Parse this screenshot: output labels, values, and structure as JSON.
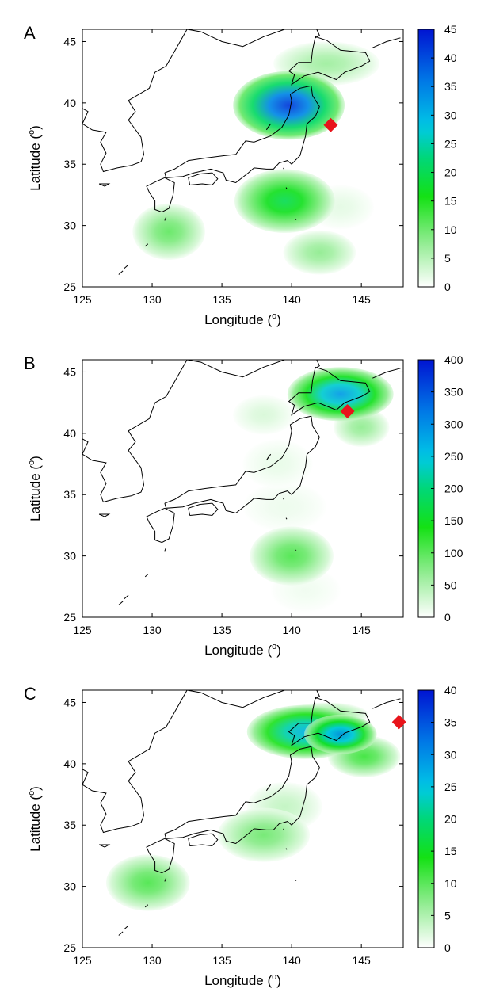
{
  "chart_data": [
    {
      "panel": "A",
      "type": "heatmap",
      "xlabel": "Longitude (",
      "ylabel": "Latitude (",
      "unit_sup": "o",
      "xlim": [
        125,
        148
      ],
      "ylim": [
        25,
        46
      ],
      "x_ticks": [
        "125",
        "130",
        "135",
        "140",
        "145"
      ],
      "y_ticks": [
        "25",
        "30",
        "35",
        "40",
        "45"
      ],
      "colorbar": {
        "min": 0,
        "max": 45,
        "ticks": [
          "0",
          "5",
          "10",
          "15",
          "20",
          "25",
          "30",
          "35",
          "40",
          "45"
        ]
      },
      "marker": {
        "shape": "diamond",
        "color": "#e8141b",
        "lon": 142.8,
        "lat": 38.2
      },
      "blobs": [
        {
          "lon": 139.8,
          "lat": 39.8,
          "rlon": 4.0,
          "rlat": 2.8,
          "value": 42
        },
        {
          "lon": 139.5,
          "lat": 32.0,
          "rlon": 3.6,
          "rlat": 2.6,
          "value": 20
        },
        {
          "lon": 142.5,
          "lat": 43.2,
          "rlon": 3.8,
          "rlat": 1.8,
          "value": 7
        },
        {
          "lon": 131.2,
          "lat": 29.5,
          "rlon": 2.6,
          "rlat": 2.3,
          "value": 11
        },
        {
          "lon": 142.0,
          "lat": 27.8,
          "rlon": 2.6,
          "rlat": 1.8,
          "value": 8
        },
        {
          "lon": 143.5,
          "lat": 31.5,
          "rlon": 2.4,
          "rlat": 1.8,
          "value": 2
        }
      ]
    },
    {
      "panel": "B",
      "type": "heatmap",
      "xlabel": "Longitude (",
      "ylabel": "Latitude (",
      "unit_sup": "o",
      "xlim": [
        125,
        148
      ],
      "ylim": [
        25,
        46
      ],
      "x_ticks": [
        "125",
        "130",
        "135",
        "140",
        "145"
      ],
      "y_ticks": [
        "25",
        "30",
        "35",
        "40",
        "45"
      ],
      "colorbar": {
        "min": 0,
        "max": 400,
        "ticks": [
          "0",
          "50",
          "100",
          "150",
          "200",
          "250",
          "300",
          "350",
          "400"
        ]
      },
      "marker": {
        "shape": "diamond",
        "color": "#e8141b",
        "lon": 144.0,
        "lat": 41.8
      },
      "blobs": [
        {
          "lon": 143.5,
          "lat": 43.2,
          "rlon": 3.8,
          "rlat": 2.2,
          "value": 290
        },
        {
          "lon": 140.0,
          "lat": 30.0,
          "rlon": 3.0,
          "rlat": 2.4,
          "value": 110
        },
        {
          "lon": 145.0,
          "lat": 40.5,
          "rlon": 2.0,
          "rlat": 1.6,
          "value": 70
        },
        {
          "lon": 138.0,
          "lat": 41.5,
          "rlon": 2.2,
          "rlat": 1.6,
          "value": 25
        },
        {
          "lon": 139.0,
          "lat": 37.5,
          "rlon": 2.5,
          "rlat": 2.0,
          "value": 15
        },
        {
          "lon": 139.5,
          "lat": 34.0,
          "rlon": 3.0,
          "rlat": 2.0,
          "value": 12
        },
        {
          "lon": 141.0,
          "lat": 27.2,
          "rlon": 2.5,
          "rlat": 1.8,
          "value": 10
        }
      ]
    },
    {
      "panel": "C",
      "type": "heatmap",
      "xlabel": "Longitude (",
      "ylabel": "Latitude (",
      "unit_sup": "o",
      "xlim": [
        125,
        148
      ],
      "ylim": [
        25,
        46
      ],
      "x_ticks": [
        "125",
        "130",
        "135",
        "140",
        "145"
      ],
      "y_ticks": [
        "25",
        "30",
        "35",
        "40",
        "45"
      ],
      "colorbar": {
        "min": 0,
        "max": 40,
        "ticks": [
          "0",
          "5",
          "10",
          "15",
          "20",
          "25",
          "30",
          "35",
          "40"
        ]
      },
      "marker": {
        "shape": "diamond",
        "color": "#e8141b",
        "lon": 147.7,
        "lat": 43.4
      },
      "blobs": [
        {
          "lon": 141.0,
          "lat": 42.6,
          "rlon": 4.2,
          "rlat": 2.2,
          "value": 27
        },
        {
          "lon": 143.5,
          "lat": 42.4,
          "rlon": 2.6,
          "rlat": 1.6,
          "value": 30
        },
        {
          "lon": 145.2,
          "lat": 40.6,
          "rlon": 2.6,
          "rlat": 1.7,
          "value": 12
        },
        {
          "lon": 129.7,
          "lat": 30.3,
          "rlon": 3.0,
          "rlat": 2.3,
          "value": 11
        },
        {
          "lon": 138.0,
          "lat": 34.2,
          "rlon": 3.3,
          "rlat": 2.2,
          "value": 9
        },
        {
          "lon": 139.5,
          "lat": 36.5,
          "rlon": 2.7,
          "rlat": 2.0,
          "value": 4
        },
        {
          "lon": 142.5,
          "lat": 44.0,
          "rlon": 3.0,
          "rlat": 1.0,
          "value": 8
        }
      ]
    }
  ]
}
